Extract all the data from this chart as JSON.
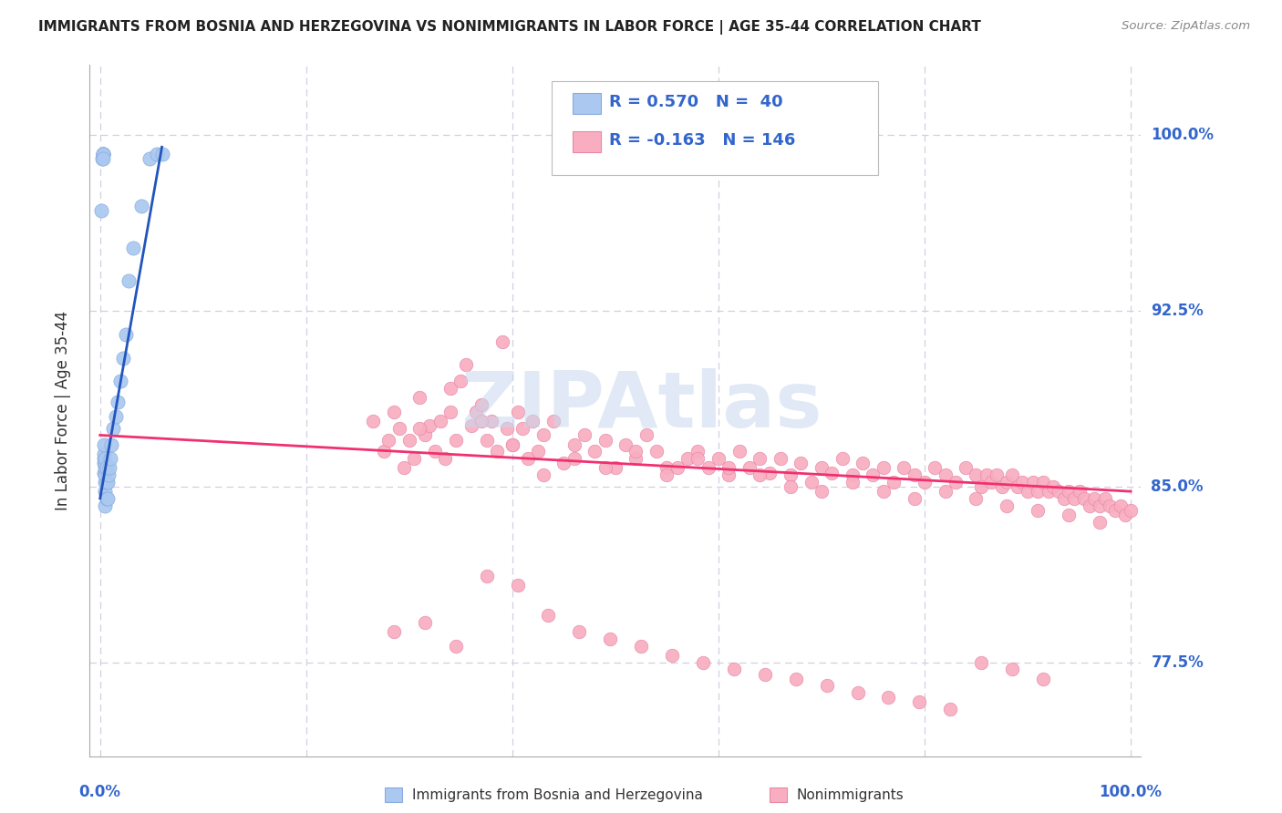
{
  "title": "IMMIGRANTS FROM BOSNIA AND HERZEGOVINA VS NONIMMIGRANTS IN LABOR FORCE | AGE 35-44 CORRELATION CHART",
  "source": "Source: ZipAtlas.com",
  "ylabel": "In Labor Force | Age 35-44",
  "y_ticks": [
    0.775,
    0.85,
    0.925,
    1.0
  ],
  "y_tick_labels": [
    "77.5%",
    "85.0%",
    "92.5%",
    "100.0%"
  ],
  "xlim": [
    -0.01,
    1.01
  ],
  "ylim": [
    0.735,
    1.03
  ],
  "blue_R": 0.57,
  "blue_N": 40,
  "pink_R": -0.163,
  "pink_N": 146,
  "legend_label_blue": "Immigrants from Bosnia and Herzegovina",
  "legend_label_pink": "Nonimmigrants",
  "blue_color": "#aac8f0",
  "blue_edge_color": "#88aadd",
  "blue_line_color": "#2255bb",
  "pink_color": "#f8aec0",
  "pink_edge_color": "#e888a8",
  "pink_line_color": "#f03070",
  "background_color": "#ffffff",
  "grid_color": "#d0d0e0",
  "title_color": "#222222",
  "source_color": "#888888",
  "axis_label_color": "#333333",
  "tick_label_color": "#3366cc",
  "watermark_color": "#c8d8ee",
  "blue_scatter_x": [
    0.001,
    0.002,
    0.003,
    0.003,
    0.003,
    0.003,
    0.003,
    0.004,
    0.004,
    0.004,
    0.004,
    0.004,
    0.005,
    0.005,
    0.005,
    0.005,
    0.005,
    0.005,
    0.005,
    0.006,
    0.006,
    0.006,
    0.007,
    0.007,
    0.008,
    0.009,
    0.01,
    0.011,
    0.013,
    0.015,
    0.017,
    0.02,
    0.022,
    0.025,
    0.028,
    0.032,
    0.04,
    0.048,
    0.055,
    0.06
  ],
  "blue_scatter_y": [
    0.968,
    0.99,
    0.992,
    0.992,
    0.992,
    0.992,
    0.99,
    0.856,
    0.86,
    0.862,
    0.864,
    0.868,
    0.842,
    0.848,
    0.852,
    0.855,
    0.858,
    0.86,
    0.862,
    0.845,
    0.852,
    0.858,
    0.845,
    0.852,
    0.855,
    0.858,
    0.862,
    0.868,
    0.875,
    0.88,
    0.886,
    0.895,
    0.905,
    0.915,
    0.938,
    0.952,
    0.97,
    0.99,
    0.992,
    0.992
  ],
  "pink_scatter_x": [
    0.265,
    0.275,
    0.28,
    0.285,
    0.29,
    0.295,
    0.3,
    0.305,
    0.31,
    0.315,
    0.32,
    0.325,
    0.33,
    0.335,
    0.34,
    0.345,
    0.35,
    0.355,
    0.36,
    0.365,
    0.37,
    0.375,
    0.38,
    0.385,
    0.39,
    0.395,
    0.4,
    0.405,
    0.41,
    0.415,
    0.42,
    0.425,
    0.43,
    0.44,
    0.45,
    0.46,
    0.47,
    0.48,
    0.49,
    0.5,
    0.51,
    0.52,
    0.53,
    0.54,
    0.55,
    0.56,
    0.57,
    0.58,
    0.59,
    0.6,
    0.61,
    0.62,
    0.63,
    0.64,
    0.65,
    0.66,
    0.67,
    0.68,
    0.69,
    0.7,
    0.71,
    0.72,
    0.73,
    0.74,
    0.75,
    0.76,
    0.77,
    0.78,
    0.79,
    0.8,
    0.81,
    0.82,
    0.83,
    0.84,
    0.85,
    0.855,
    0.86,
    0.865,
    0.87,
    0.875,
    0.88,
    0.885,
    0.89,
    0.895,
    0.9,
    0.905,
    0.91,
    0.915,
    0.92,
    0.925,
    0.93,
    0.935,
    0.94,
    0.945,
    0.95,
    0.955,
    0.96,
    0.965,
    0.97,
    0.975,
    0.98,
    0.985,
    0.99,
    0.995,
    1.0,
    0.31,
    0.34,
    0.37,
    0.4,
    0.43,
    0.46,
    0.49,
    0.52,
    0.55,
    0.58,
    0.61,
    0.64,
    0.67,
    0.7,
    0.73,
    0.76,
    0.79,
    0.82,
    0.85,
    0.88,
    0.91,
    0.94,
    0.97,
    0.285,
    0.315,
    0.345,
    0.375,
    0.405,
    0.435,
    0.465,
    0.495,
    0.525,
    0.555,
    0.585,
    0.615,
    0.645,
    0.675,
    0.705,
    0.735,
    0.765,
    0.795,
    0.825,
    0.855,
    0.885,
    0.915
  ],
  "pink_scatter_y": [
    0.878,
    0.865,
    0.87,
    0.882,
    0.875,
    0.858,
    0.87,
    0.862,
    0.888,
    0.872,
    0.876,
    0.865,
    0.878,
    0.862,
    0.892,
    0.87,
    0.895,
    0.902,
    0.876,
    0.882,
    0.885,
    0.87,
    0.878,
    0.865,
    0.912,
    0.875,
    0.868,
    0.882,
    0.875,
    0.862,
    0.878,
    0.865,
    0.872,
    0.878,
    0.86,
    0.868,
    0.872,
    0.865,
    0.87,
    0.858,
    0.868,
    0.862,
    0.872,
    0.865,
    0.858,
    0.858,
    0.862,
    0.865,
    0.858,
    0.862,
    0.855,
    0.865,
    0.858,
    0.862,
    0.856,
    0.862,
    0.855,
    0.86,
    0.852,
    0.858,
    0.856,
    0.862,
    0.855,
    0.86,
    0.855,
    0.858,
    0.852,
    0.858,
    0.855,
    0.852,
    0.858,
    0.855,
    0.852,
    0.858,
    0.855,
    0.85,
    0.855,
    0.852,
    0.855,
    0.85,
    0.852,
    0.855,
    0.85,
    0.852,
    0.848,
    0.852,
    0.848,
    0.852,
    0.848,
    0.85,
    0.848,
    0.845,
    0.848,
    0.845,
    0.848,
    0.845,
    0.842,
    0.845,
    0.842,
    0.845,
    0.842,
    0.84,
    0.842,
    0.838,
    0.84,
    0.875,
    0.882,
    0.878,
    0.868,
    0.855,
    0.862,
    0.858,
    0.865,
    0.855,
    0.862,
    0.858,
    0.855,
    0.85,
    0.848,
    0.852,
    0.848,
    0.845,
    0.848,
    0.845,
    0.842,
    0.84,
    0.838,
    0.835,
    0.788,
    0.792,
    0.782,
    0.812,
    0.808,
    0.795,
    0.788,
    0.785,
    0.782,
    0.778,
    0.775,
    0.772,
    0.77,
    0.768,
    0.765,
    0.762,
    0.76,
    0.758,
    0.755,
    0.775,
    0.772,
    0.768
  ]
}
